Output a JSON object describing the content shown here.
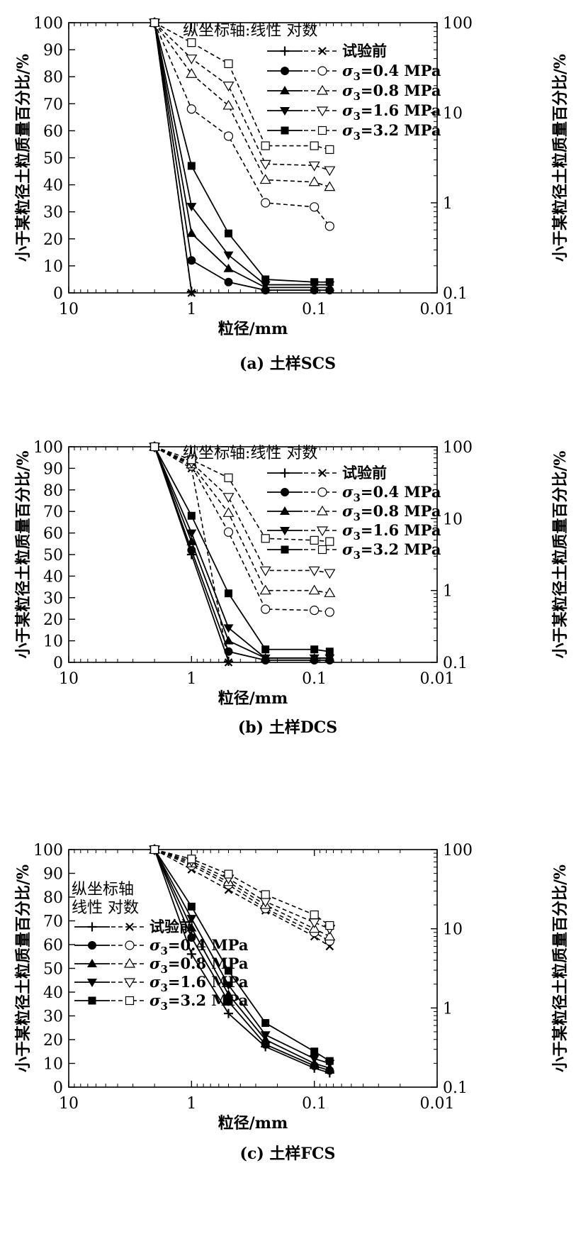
{
  "shared": {
    "x_ticks": [
      "10",
      "1",
      "0.1",
      "0.01"
    ],
    "left_ticks": [
      "0",
      "10",
      "20",
      "30",
      "40",
      "50",
      "60",
      "70",
      "80",
      "90",
      "100"
    ],
    "right_ticks": [
      "0.1",
      "1",
      "10",
      "100"
    ],
    "xlabel": "粒径/mm",
    "ylabel_left": "小于某粒径土粒质量百分比/%",
    "ylabel_right": "小于某粒径土粒质量百分比/%",
    "legend_title": "纵坐标轴:线性 对数",
    "legend_title_line1": "纵坐标轴",
    "legend_title_line2": "线性 对数",
    "legend_entries": [
      {
        "sub": "",
        "text": "试验前"
      },
      {
        "sub": "3",
        "text": "=0.4 MPa"
      },
      {
        "sub": "3",
        "text": "=0.8 MPa"
      },
      {
        "sub": "3",
        "text": "=1.6 MPa"
      },
      {
        "sub": "3",
        "text": "=3.2 MPa"
      }
    ],
    "sigma_symbol": "σ"
  },
  "chart_data": [
    {
      "type": "line",
      "caption": "(a) 土样SCS",
      "x_scale": "log-reversed",
      "xlim": [
        10,
        0.01
      ],
      "ylim_left": [
        0,
        100
      ],
      "ylim_right": [
        0.1,
        100
      ],
      "y_scale_right": "log",
      "grid": false,
      "legend_position": "top-right",
      "series": [
        {
          "name": "试验前",
          "axis": "linear",
          "marker": "plus",
          "x": [
            2,
            1
          ],
          "y": [
            100,
            0.5
          ]
        },
        {
          "name": "σ3=0.4 MPa",
          "axis": "linear",
          "marker": "circle-filled",
          "x": [
            2,
            1,
            0.5,
            0.25,
            0.1,
            0.075
          ],
          "y": [
            100,
            12,
            4,
            1,
            1,
            1
          ]
        },
        {
          "name": "σ3=0.8 MPa",
          "axis": "linear",
          "marker": "triangle-up-filled",
          "x": [
            2,
            1,
            0.5,
            0.25,
            0.1,
            0.075
          ],
          "y": [
            100,
            22,
            9,
            2,
            2,
            2
          ]
        },
        {
          "name": "σ3=1.6 MPa",
          "axis": "linear",
          "marker": "triangle-down-filled",
          "x": [
            2,
            1,
            0.5,
            0.25,
            0.1,
            0.075
          ],
          "y": [
            100,
            32,
            14,
            3,
            3,
            3
          ]
        },
        {
          "name": "σ3=3.2 MPa",
          "axis": "linear",
          "marker": "square-filled",
          "x": [
            2,
            1,
            0.5,
            0.25,
            0.1,
            0.075
          ],
          "y": [
            100,
            47,
            22,
            5,
            4,
            4
          ]
        },
        {
          "name": "试验前",
          "axis": "log",
          "marker": "x",
          "x": [
            2,
            1
          ],
          "y": [
            100,
            0.1
          ]
        },
        {
          "name": "σ3=0.4 MPa",
          "axis": "log",
          "marker": "circle-open",
          "x": [
            2,
            1,
            0.5,
            0.25,
            0.1,
            0.075
          ],
          "y": [
            100,
            11,
            5.5,
            1,
            0.9,
            0.55
          ]
        },
        {
          "name": "σ3=0.8 MPa",
          "axis": "log",
          "marker": "triangle-up-open",
          "x": [
            2,
            1,
            0.5,
            0.25,
            0.1,
            0.075
          ],
          "y": [
            100,
            27,
            12,
            1.8,
            1.7,
            1.5
          ]
        },
        {
          "name": "σ3=1.6 MPa",
          "axis": "log",
          "marker": "triangle-down-open",
          "x": [
            2,
            1,
            0.5,
            0.25,
            0.1,
            0.075
          ],
          "y": [
            100,
            40,
            20,
            2.7,
            2.6,
            2.3
          ]
        },
        {
          "name": "σ3=3.2 MPa",
          "axis": "log",
          "marker": "square-open",
          "x": [
            2,
            1,
            0.5,
            0.25,
            0.1,
            0.075
          ],
          "y": [
            100,
            60,
            35,
            4.3,
            4.3,
            3.9
          ]
        }
      ]
    },
    {
      "type": "line",
      "caption": "(b) 土样DCS",
      "x_scale": "log-reversed",
      "xlim": [
        10,
        0.01
      ],
      "ylim_left": [
        0,
        100
      ],
      "ylim_right": [
        0.1,
        100
      ],
      "y_scale_right": "log",
      "grid": false,
      "legend_position": "top-right",
      "series": [
        {
          "name": "试验前",
          "axis": "linear",
          "marker": "plus",
          "x": [
            2,
            1,
            0.5
          ],
          "y": [
            100,
            50,
            0.5
          ]
        },
        {
          "name": "σ3=0.4 MPa",
          "axis": "linear",
          "marker": "circle-filled",
          "x": [
            2,
            1,
            0.5,
            0.25,
            0.1,
            0.075
          ],
          "y": [
            100,
            52,
            5,
            1,
            1,
            1
          ]
        },
        {
          "name": "σ3=0.8 MPa",
          "axis": "linear",
          "marker": "triangle-up-filled",
          "x": [
            2,
            1,
            0.5,
            0.25,
            0.1,
            0.075
          ],
          "y": [
            100,
            56,
            10,
            2,
            2,
            2
          ]
        },
        {
          "name": "σ3=1.6 MPa",
          "axis": "linear",
          "marker": "triangle-down-filled",
          "x": [
            2,
            1,
            0.5,
            0.25,
            0.1,
            0.075
          ],
          "y": [
            100,
            60,
            16,
            2,
            2,
            2
          ]
        },
        {
          "name": "σ3=3.2 MPa",
          "axis": "linear",
          "marker": "square-filled",
          "x": [
            2,
            1,
            0.5,
            0.25,
            0.1,
            0.075
          ],
          "y": [
            100,
            68,
            32,
            6,
            6,
            5
          ]
        },
        {
          "name": "试验前",
          "axis": "log",
          "marker": "x",
          "x": [
            2,
            1,
            0.5
          ],
          "y": [
            100,
            50,
            0.1
          ]
        },
        {
          "name": "σ3=0.4 MPa",
          "axis": "log",
          "marker": "circle-open",
          "x": [
            2,
            1,
            0.5,
            0.25,
            0.1,
            0.075
          ],
          "y": [
            100,
            54,
            6.5,
            0.55,
            0.53,
            0.5
          ]
        },
        {
          "name": "σ3=0.8 MPa",
          "axis": "log",
          "marker": "triangle-up-open",
          "x": [
            2,
            1,
            0.5,
            0.25,
            0.1,
            0.075
          ],
          "y": [
            100,
            57,
            12,
            1.0,
            1.0,
            0.92
          ]
        },
        {
          "name": "σ3=1.6 MPa",
          "axis": "log",
          "marker": "triangle-down-open",
          "x": [
            2,
            1,
            0.5,
            0.25,
            0.1,
            0.075
          ],
          "y": [
            100,
            60,
            20,
            1.9,
            1.9,
            1.75
          ]
        },
        {
          "name": "σ3=3.2 MPa",
          "axis": "log",
          "marker": "square-open",
          "x": [
            2,
            1,
            0.5,
            0.25,
            0.1,
            0.075
          ],
          "y": [
            100,
            66,
            37,
            5.3,
            5.0,
            4.8
          ]
        }
      ]
    },
    {
      "type": "line",
      "caption": "(c) 土样FCS",
      "x_scale": "log-reversed",
      "xlim": [
        10,
        0.01
      ],
      "ylim_left": [
        0,
        100
      ],
      "ylim_right": [
        0.1,
        100
      ],
      "y_scale_right": "log",
      "grid": false,
      "legend_position": "bottom-left",
      "series": [
        {
          "name": "试验前",
          "axis": "linear",
          "marker": "plus",
          "x": [
            2,
            1,
            0.5,
            0.25,
            0.1,
            0.075
          ],
          "y": [
            100,
            56,
            31,
            17,
            8,
            6
          ]
        },
        {
          "name": "σ3=0.4 MPa",
          "axis": "linear",
          "marker": "circle-filled",
          "x": [
            2,
            1,
            0.5,
            0.25,
            0.1,
            0.075
          ],
          "y": [
            100,
            63,
            36,
            18,
            9,
            7
          ]
        },
        {
          "name": "σ3=0.8 MPa",
          "axis": "linear",
          "marker": "triangle-up-filled",
          "x": [
            2,
            1,
            0.5,
            0.25,
            0.1,
            0.075
          ],
          "y": [
            100,
            67,
            39,
            20,
            10,
            8
          ]
        },
        {
          "name": "σ3=1.6 MPa",
          "axis": "linear",
          "marker": "triangle-down-filled",
          "x": [
            2,
            1,
            0.5,
            0.25,
            0.1,
            0.075
          ],
          "y": [
            100,
            71,
            43,
            22,
            12,
            10
          ]
        },
        {
          "name": "σ3=3.2 MPa",
          "axis": "linear",
          "marker": "square-filled",
          "x": [
            2,
            1,
            0.5,
            0.25,
            0.1,
            0.075
          ],
          "y": [
            100,
            76,
            49,
            27,
            15,
            11
          ]
        },
        {
          "name": "试验前",
          "axis": "log",
          "marker": "x",
          "x": [
            2,
            1,
            0.5,
            0.25,
            0.1,
            0.075
          ],
          "y": [
            100,
            56,
            31,
            17,
            8,
            6
          ]
        },
        {
          "name": "σ3=0.4 MPa",
          "axis": "log",
          "marker": "circle-open",
          "x": [
            2,
            1,
            0.5,
            0.25,
            0.1,
            0.075
          ],
          "y": [
            100,
            63,
            36,
            18,
            9,
            7
          ]
        },
        {
          "name": "σ3=0.8 MPa",
          "axis": "log",
          "marker": "triangle-up-open",
          "x": [
            2,
            1,
            0.5,
            0.25,
            0.1,
            0.075
          ],
          "y": [
            100,
            67,
            39,
            20,
            10,
            8
          ]
        },
        {
          "name": "σ3=1.6 MPa",
          "axis": "log",
          "marker": "triangle-down-open",
          "x": [
            2,
            1,
            0.5,
            0.25,
            0.1,
            0.075
          ],
          "y": [
            100,
            71,
            43,
            22,
            12,
            10
          ]
        },
        {
          "name": "σ3=3.2 MPa",
          "axis": "log",
          "marker": "square-open",
          "x": [
            2,
            1,
            0.5,
            0.25,
            0.1,
            0.075
          ],
          "y": [
            100,
            76,
            49,
            27,
            15,
            11
          ]
        }
      ]
    }
  ]
}
